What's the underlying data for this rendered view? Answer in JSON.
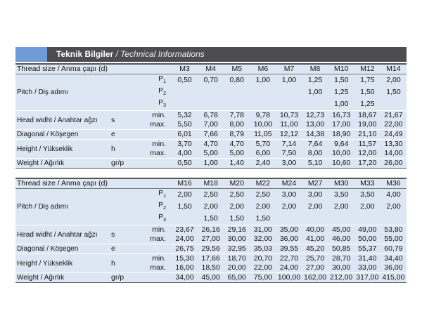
{
  "header": {
    "title": "Teknik Bilgiler",
    "subtitle": "/ Technical Informations"
  },
  "tables": [
    {
      "header_label": "Thread size / Anma çapı (d)",
      "columns": [
        "M3",
        "M4",
        "M5",
        "M6",
        "M7",
        "M8",
        "M10",
        "M12",
        "M14"
      ],
      "rows": [
        {
          "label": "Pitch / Diş adımı",
          "subrows": [
            {
              "mark": {
                "letter": "P",
                "sub": "1"
              },
              "values": [
                "0,50",
                "0,70",
                "0,80",
                "1,00",
                "1,00",
                "1,25",
                "1,50",
                "1,75",
                "2,00"
              ]
            },
            {
              "mark": {
                "letter": "P",
                "sub": "2"
              },
              "values": [
                null,
                null,
                null,
                null,
                null,
                "1,00",
                "1,25",
                "1,50",
                "1,50"
              ]
            },
            {
              "mark": {
                "letter": "P",
                "sub": "3"
              },
              "values": [
                null,
                null,
                null,
                null,
                null,
                null,
                "1,00",
                "1,25",
                null
              ]
            }
          ]
        },
        {
          "label": "Head widht / Anahtar ağzı",
          "unit": "s",
          "subrows": [
            {
              "mark": "min.",
              "values": [
                "5,32",
                "6,78",
                "7,78",
                "9,78",
                "10,73",
                "12,73",
                "16,73",
                "18,67",
                "21,67"
              ]
            },
            {
              "mark": "max.",
              "values": [
                "5,50",
                "7,00",
                "8,00",
                "10,00",
                "11,00",
                "13,00",
                "17,00",
                "19,00",
                "22,00"
              ]
            }
          ]
        },
        {
          "label": "Diagonal / Köşegen",
          "unit": "e",
          "subrows": [
            {
              "values": [
                "6,01",
                "7,66",
                "8,79",
                "11,05",
                "12,12",
                "14,38",
                "18,90",
                "21,10",
                "24,49"
              ]
            }
          ]
        },
        {
          "label": "Height / Yükseklik",
          "unit": "h",
          "subrows": [
            {
              "mark": "min.",
              "values": [
                "3,70",
                "4,70",
                "4,70",
                "5,70",
                "7,14",
                "7,64",
                "9,64",
                "11,57",
                "13,30"
              ]
            },
            {
              "mark": "max.",
              "values": [
                "4,00",
                "5,00",
                "5,00",
                "6,00",
                "7,50",
                "8,00",
                "10,00",
                "12,00",
                "14,00"
              ]
            }
          ]
        },
        {
          "label": "Weight / Ağırlık",
          "unit": "gr/p",
          "subrows": [
            {
              "values": [
                "0,50",
                "1,00",
                "1,40",
                "2,40",
                "3,00",
                "5,10",
                "10,60",
                "17,20",
                "26,00"
              ]
            }
          ]
        }
      ]
    },
    {
      "header_label": "Thread size / Anma çapı (d)",
      "columns": [
        "M16",
        "M18",
        "M20",
        "M22",
        "M24",
        "M27",
        "M30",
        "M33",
        "M36"
      ],
      "rows": [
        {
          "label": "Pitch / Diş adımı",
          "subrows": [
            {
              "mark": {
                "letter": "P",
                "sub": "1"
              },
              "values": [
                "2,00",
                "2,50",
                "2,50",
                "2,50",
                "3,00",
                "3,00",
                "3,50",
                "3,50",
                "4,00"
              ]
            },
            {
              "mark": {
                "letter": "P",
                "sub": "2"
              },
              "values": [
                "1,50",
                "2,00",
                "2,00",
                "2,00",
                "2,00",
                "2,00",
                "2,00",
                "2,00",
                "2,00"
              ]
            },
            {
              "mark": {
                "letter": "P",
                "sub": "3"
              },
              "values": [
                null,
                "1,50",
                "1,50",
                "1,50",
                null,
                null,
                null,
                null,
                null
              ]
            }
          ]
        },
        {
          "label": "Head widht / Anahtar ağzı",
          "unit": "s",
          "subrows": [
            {
              "mark": "min.",
              "values": [
                "23,67",
                "26,16",
                "29,16",
                "31,00",
                "35,00",
                "40,00",
                "45,00",
                "49,00",
                "53,80"
              ]
            },
            {
              "mark": "max.",
              "values": [
                "24,00",
                "27,00",
                "30,00",
                "32,00",
                "36,00",
                "41,00",
                "46,00",
                "50,00",
                "55,00"
              ]
            }
          ]
        },
        {
          "label": "Diagonal / Köşegen",
          "unit": "e",
          "subrows": [
            {
              "values": [
                "26,75",
                "29,56",
                "32,95",
                "35,03",
                "39,55",
                "45,20",
                "50,85",
                "55,37",
                "60,79"
              ]
            }
          ]
        },
        {
          "label": "Height / Yükseklik",
          "unit": "h",
          "subrows": [
            {
              "mark": "min.",
              "values": [
                "15,30",
                "17,66",
                "18,70",
                "20,70",
                "22,70",
                "25,70",
                "28,70",
                "31,40",
                "34,40"
              ]
            },
            {
              "mark": "max.",
              "values": [
                "16,00",
                "18,50",
                "20,00",
                "22,00",
                "24,00",
                "27,00",
                "30,00",
                "33,00",
                "36,00"
              ]
            }
          ]
        },
        {
          "label": "Weight / Ağırlık",
          "unit": "gr/p",
          "subrows": [
            {
              "values": [
                "34,00",
                "45,00",
                "65,00",
                "75,00",
                "100,00",
                "162,00",
                "212,00",
                "317,00",
                "415,00"
              ]
            }
          ]
        }
      ]
    }
  ]
}
